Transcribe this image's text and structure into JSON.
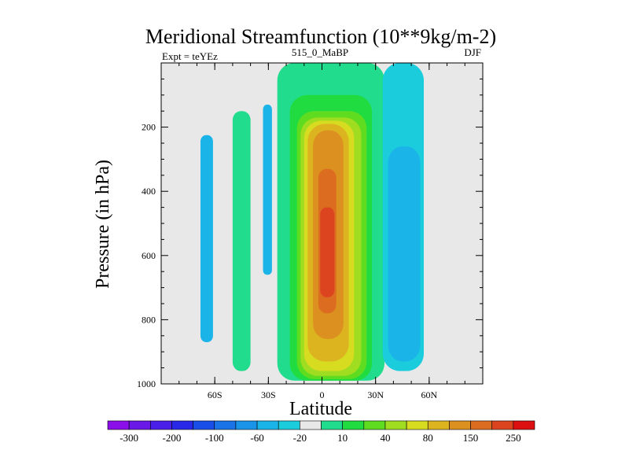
{
  "chart_data": {
    "type": "heatmap",
    "title": "Meridional Streamfunction (10**9kg/m-2)",
    "subtitle_left": "Expt = teYEz",
    "subtitle_center": "515_0_MaBP",
    "subtitle_right": "DJF",
    "xlabel": "Latitude",
    "ylabel": "Pressure (in hPa)",
    "xlim": [
      -90,
      90
    ],
    "ylim": [
      0,
      1000
    ],
    "xticks": [
      {
        "value": -60,
        "label": "60S"
      },
      {
        "value": -30,
        "label": "30S"
      },
      {
        "value": 0,
        "label": "0"
      },
      {
        "value": 30,
        "label": "30N"
      },
      {
        "value": 60,
        "label": "60N"
      }
    ],
    "yticks": [
      {
        "value": 200,
        "label": "200"
      },
      {
        "value": 400,
        "label": "400"
      },
      {
        "value": 600,
        "label": "600"
      },
      {
        "value": 800,
        "label": "800"
      },
      {
        "value": 1000,
        "label": "1000"
      }
    ],
    "colorbar": {
      "colors": [
        "#8a0fe8",
        "#6a18e8",
        "#4a20e8",
        "#2a28e8",
        "#1a4ee8",
        "#1a74e8",
        "#1a94e8",
        "#1ab4e8",
        "#1accdc",
        "#e8e8e8",
        "#20dc8c",
        "#20dc40",
        "#60dc20",
        "#a0dc20",
        "#d8dc20",
        "#dcb420",
        "#dc9020",
        "#dc6c20",
        "#dc4420",
        "#dc1010"
      ],
      "labels": [
        {
          "after_box": 1,
          "text": "-300"
        },
        {
          "after_box": 3,
          "text": "-200"
        },
        {
          "after_box": 5,
          "text": "-100"
        },
        {
          "after_box": 7,
          "text": "-60"
        },
        {
          "after_box": 9,
          "text": "-20"
        },
        {
          "after_box": 11,
          "text": "10"
        },
        {
          "after_box": 13,
          "text": "40"
        },
        {
          "after_box": 15,
          "text": "80"
        },
        {
          "after_box": 17,
          "text": "150"
        },
        {
          "after_box": 19,
          "text": "250"
        }
      ]
    },
    "cells": [
      {
        "name": "cell-sh-highlat",
        "color": "#1ab4e8",
        "lat_min": -68,
        "lat_max": -61,
        "p_top": 225,
        "p_bottom": 870
      },
      {
        "name": "cell-sh-midlat",
        "color": "#20dc8c",
        "lat_min": -50,
        "lat_max": -40,
        "p_top": 150,
        "p_bottom": 960
      },
      {
        "name": "cell-sh-subtrop",
        "color": "#1ab4e8",
        "lat_min": -33,
        "lat_max": -28,
        "p_top": 130,
        "p_bottom": 660
      },
      {
        "name": "cell-hadley-10",
        "color": "#20dc8c",
        "lat_min": -25,
        "lat_max": 35,
        "p_top": 0,
        "p_bottom": 990
      },
      {
        "name": "cell-hadley-40",
        "color": "#20dc40",
        "lat_min": -18,
        "lat_max": 28,
        "p_top": 100,
        "p_bottom": 990
      },
      {
        "name": "cell-hadley-60",
        "color": "#60dc20",
        "lat_min": -14,
        "lat_max": 25,
        "p_top": 150,
        "p_bottom": 985
      },
      {
        "name": "cell-hadley-80",
        "color": "#a0dc20",
        "lat_min": -12,
        "lat_max": 22,
        "p_top": 170,
        "p_bottom": 975
      },
      {
        "name": "cell-hadley-110",
        "color": "#d8dc20",
        "lat_min": -10,
        "lat_max": 18,
        "p_top": 180,
        "p_bottom": 960
      },
      {
        "name": "cell-hadley-150",
        "color": "#dcb420",
        "lat_min": -8,
        "lat_max": 15,
        "p_top": 190,
        "p_bottom": 930
      },
      {
        "name": "cell-hadley-200",
        "color": "#dc9020",
        "lat_min": -5,
        "lat_max": 12,
        "p_top": 210,
        "p_bottom": 860
      },
      {
        "name": "cell-hadley-250",
        "color": "#dc6c20",
        "lat_min": -2,
        "lat_max": 8,
        "p_top": 330,
        "p_bottom": 780
      },
      {
        "name": "cell-hadley-300",
        "color": "#dc4420",
        "lat_min": -1,
        "lat_max": 7,
        "p_top": 450,
        "p_bottom": 730
      },
      {
        "name": "cell-nh-ferrel-outer",
        "color": "#1accdc",
        "lat_min": 34,
        "lat_max": 57,
        "p_top": 0,
        "p_bottom": 960
      },
      {
        "name": "cell-nh-ferrel-inner",
        "color": "#1ab4e8",
        "lat_min": 37,
        "lat_max": 55,
        "p_top": 260,
        "p_bottom": 930
      }
    ]
  }
}
